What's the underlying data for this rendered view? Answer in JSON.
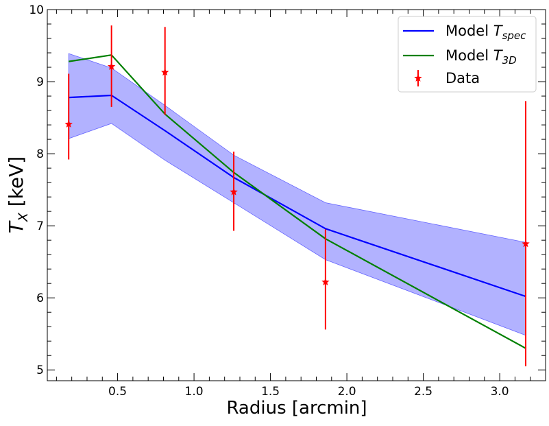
{
  "chart_data": {
    "type": "line",
    "xlabel": "Radius [arcmin]",
    "ylabel": {
      "base": "T",
      "sub": "X",
      "rest": " [keV]"
    },
    "xlim": [
      0.04,
      3.3
    ],
    "ylim": [
      4.85,
      10.0
    ],
    "x_ticks": [
      0.5,
      1.0,
      1.5,
      2.0,
      2.5,
      3.0
    ],
    "x_tick_labels": [
      "0.5",
      "1.0",
      "1.5",
      "2.0",
      "2.5",
      "3.0"
    ],
    "y_ticks": [
      5,
      6,
      7,
      8,
      9,
      10
    ],
    "y_tick_labels": [
      "5",
      "6",
      "7",
      "8",
      "9",
      "10"
    ],
    "x_minor_step": 0.1,
    "y_minor_step": 0.2,
    "grid": false,
    "legend_position": "top-right",
    "series": [
      {
        "name": "Model T_spec",
        "legend": {
          "base": "Model ",
          "italic": "T",
          "sub": "spec"
        },
        "color": "#0000ff",
        "x": [
          0.18,
          0.46,
          0.81,
          1.26,
          1.86,
          3.17
        ],
        "y": [
          8.78,
          8.81,
          8.32,
          7.67,
          6.96,
          6.02
        ],
        "band_lower": [
          8.21,
          8.42,
          7.91,
          7.32,
          6.53,
          5.48
        ],
        "band_upper": [
          9.39,
          9.19,
          8.67,
          7.98,
          7.32,
          6.77
        ],
        "band_color": "#6666ff"
      },
      {
        "name": "Model T_3D",
        "legend": {
          "base": "Model ",
          "italic": "T",
          "sub": "3D"
        },
        "color": "#008000",
        "x": [
          0.18,
          0.46,
          0.81,
          1.26,
          1.86,
          3.17
        ],
        "y": [
          9.28,
          9.37,
          8.55,
          7.74,
          6.82,
          5.3
        ]
      }
    ],
    "data_points": {
      "name": "Data",
      "legend": {
        "base": "Data"
      },
      "color": "#ff0000",
      "x": [
        0.18,
        0.46,
        0.81,
        1.26,
        1.86,
        3.17
      ],
      "y": [
        8.41,
        9.21,
        9.13,
        7.47,
        6.22,
        6.75
      ],
      "err_low": [
        7.92,
        8.65,
        8.54,
        6.93,
        5.56,
        5.05
      ],
      "err_high": [
        9.11,
        9.78,
        9.76,
        8.03,
        6.95,
        8.73
      ]
    }
  }
}
